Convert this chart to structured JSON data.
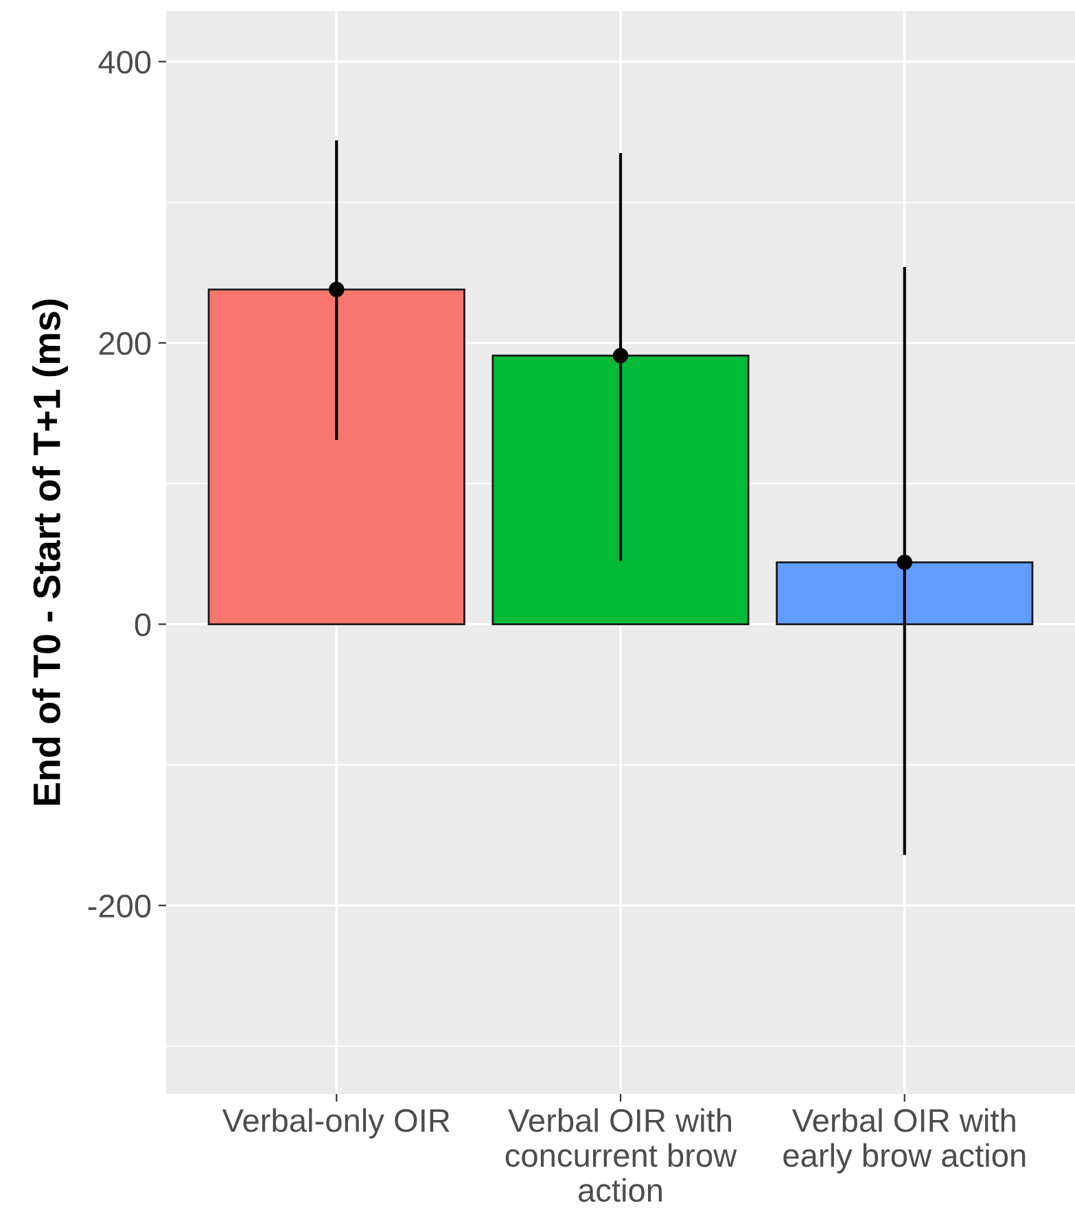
{
  "chart_data": {
    "type": "bar",
    "ylabel": "End of T0 - Start of T+1 (ms)",
    "categories": [
      "Verbal-only OIR",
      "Verbal OIR with\nconcurrent brow\naction",
      "Verbal OIR with\nearly brow action"
    ],
    "series": [
      {
        "colors": [
          "#f8766d",
          "#00ba38",
          "#619cff"
        ],
        "values": [
          238,
          191,
          44
        ]
      },
      {
        "type": "scatter",
        "color": "#000000",
        "marker": "circle",
        "x": [
          "Verbal-only OIR",
          "Verbal OIR with\nconcurrent brow\naction",
          "Verbal OIR with\nearly brow action"
        ],
        "values": [
          238,
          191,
          44
        ],
        "errors": [
          [
            132,
            343
          ],
          [
            46,
            334
          ],
          [
            -163,
            253
          ]
        ]
      }
    ],
    "ylim": [
      -334,
      436
    ],
    "yticks": [
      -200,
      0,
      200,
      400
    ],
    "grid": true
  }
}
